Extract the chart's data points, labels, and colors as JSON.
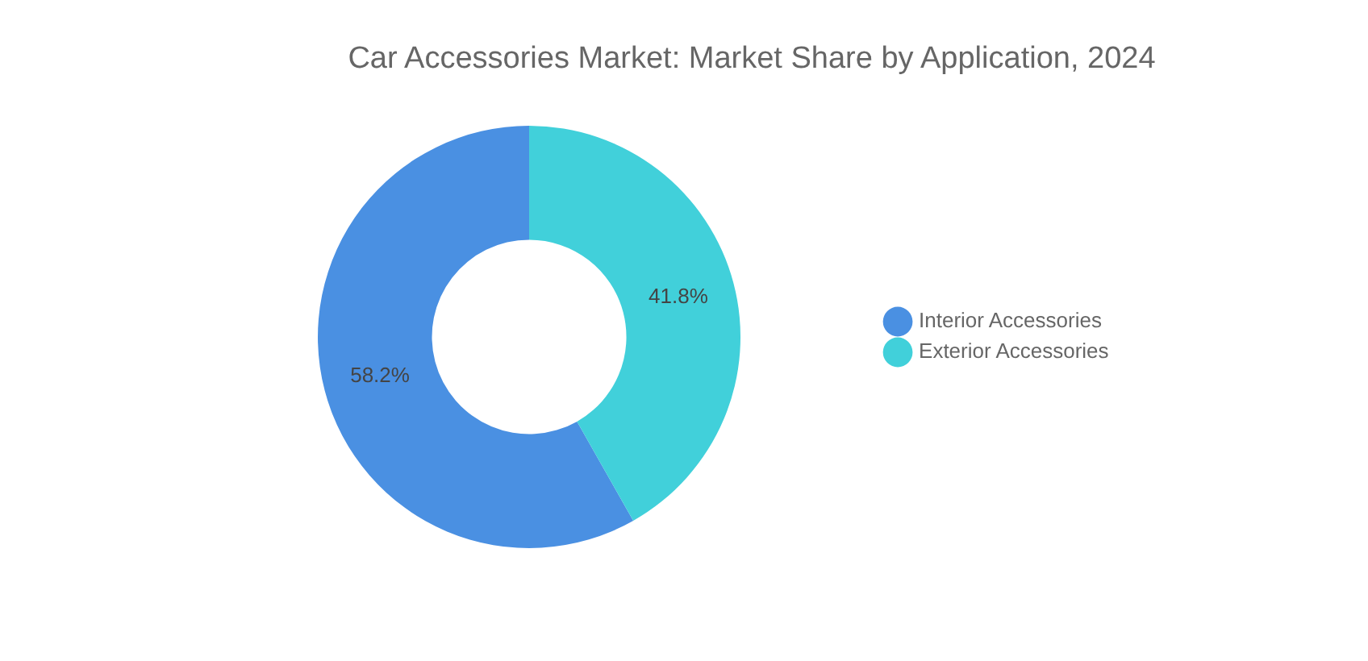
{
  "chart_data": {
    "type": "donut",
    "title": "Car Accessories Market: Market Share by Application, 2024",
    "categories": [
      "Interior Accessories",
      "Exterior Accessories"
    ],
    "values": [
      58.2,
      41.8
    ],
    "colors": [
      "#4a90e2",
      "#41d0da"
    ],
    "value_labels": [
      "58.2%",
      "41.8%"
    ],
    "legend": "right"
  }
}
